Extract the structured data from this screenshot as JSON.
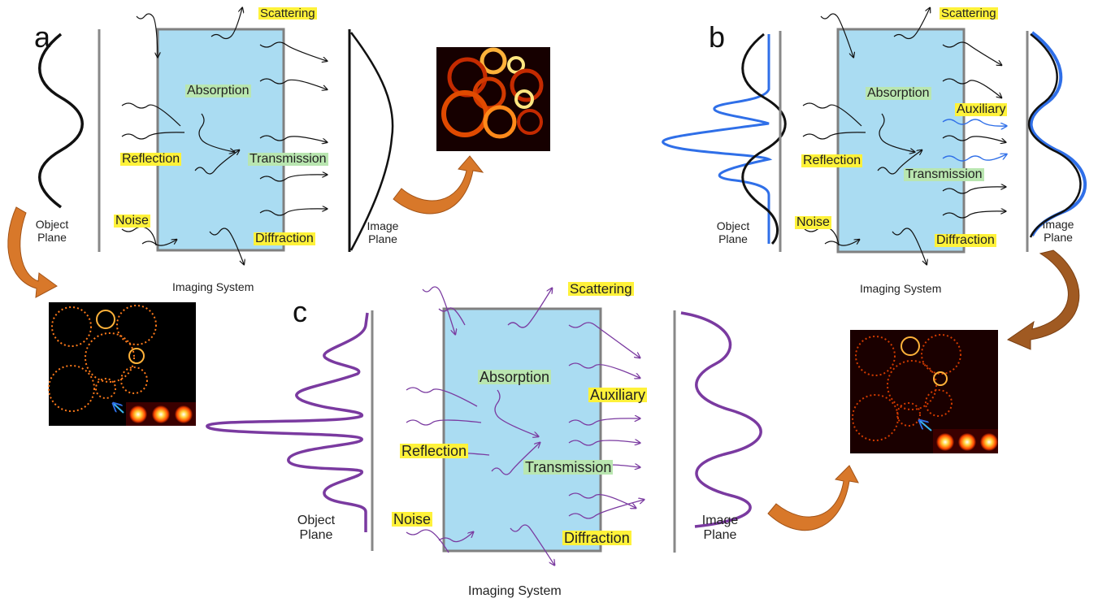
{
  "panel_a": {
    "letter": "a",
    "object_plane": "Object Plane",
    "image_plane": "Image Plane",
    "imaging_system": "Imaging System",
    "scattering": "Scattering",
    "absorption": "Absorption",
    "reflection": "Reflection",
    "transmission": "Transmission",
    "noise": "Noise",
    "diffraction": "Diffraction"
  },
  "panel_b": {
    "letter": "b",
    "object_plane": "Object Plane",
    "image_plane": "Image Plane",
    "imaging_system": "Imaging System",
    "scattering": "Scattering",
    "absorption": "Absorption",
    "auxiliary": "Auxiliary",
    "reflection": "Reflection",
    "transmission": "Transmission",
    "noise": "Noise",
    "diffraction": "Diffraction"
  },
  "panel_c": {
    "letter": "c",
    "object_plane": "Object Plane",
    "image_plane": "Image Plane",
    "imaging_system": "Imaging System",
    "scattering": "Scattering",
    "absorption": "Absorption",
    "auxiliary": "Auxiliary",
    "reflection": "Reflection",
    "transmission": "Transmission",
    "noise": "Noise",
    "diffraction": "Diffraction"
  },
  "colors": {
    "system_fill": "#aadcf2",
    "system_border": "#808080",
    "black_wave": "#111111",
    "blue_wave": "#2f6fe8",
    "purple_wave": "#7a3aa0",
    "arrow_orange": "#d8782a",
    "label_yellow": "#fff23a",
    "label_green": "#b9e6b0"
  }
}
